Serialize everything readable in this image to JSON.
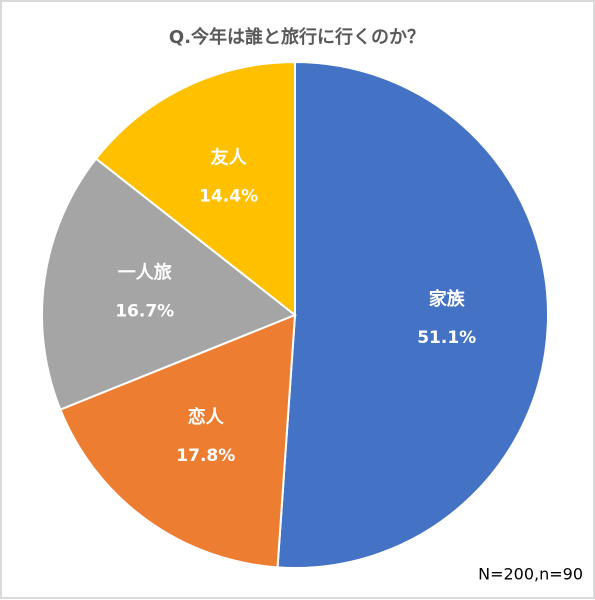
{
  "chart_data": {
    "type": "pie",
    "title": "Q.今年は誰と旅行に行くのか？",
    "categories": [
      "家族",
      "恋人",
      "一人旅",
      "友人"
    ],
    "values": [
      51.1,
      17.8,
      16.7,
      14.4
    ],
    "value_labels": [
      "51.1%",
      "17.8%",
      "16.7%",
      "14.4%"
    ],
    "colors": [
      "#4472c4",
      "#ed7d31",
      "#a5a5a5",
      "#ffc000"
    ],
    "note": "N=200,n=90"
  }
}
